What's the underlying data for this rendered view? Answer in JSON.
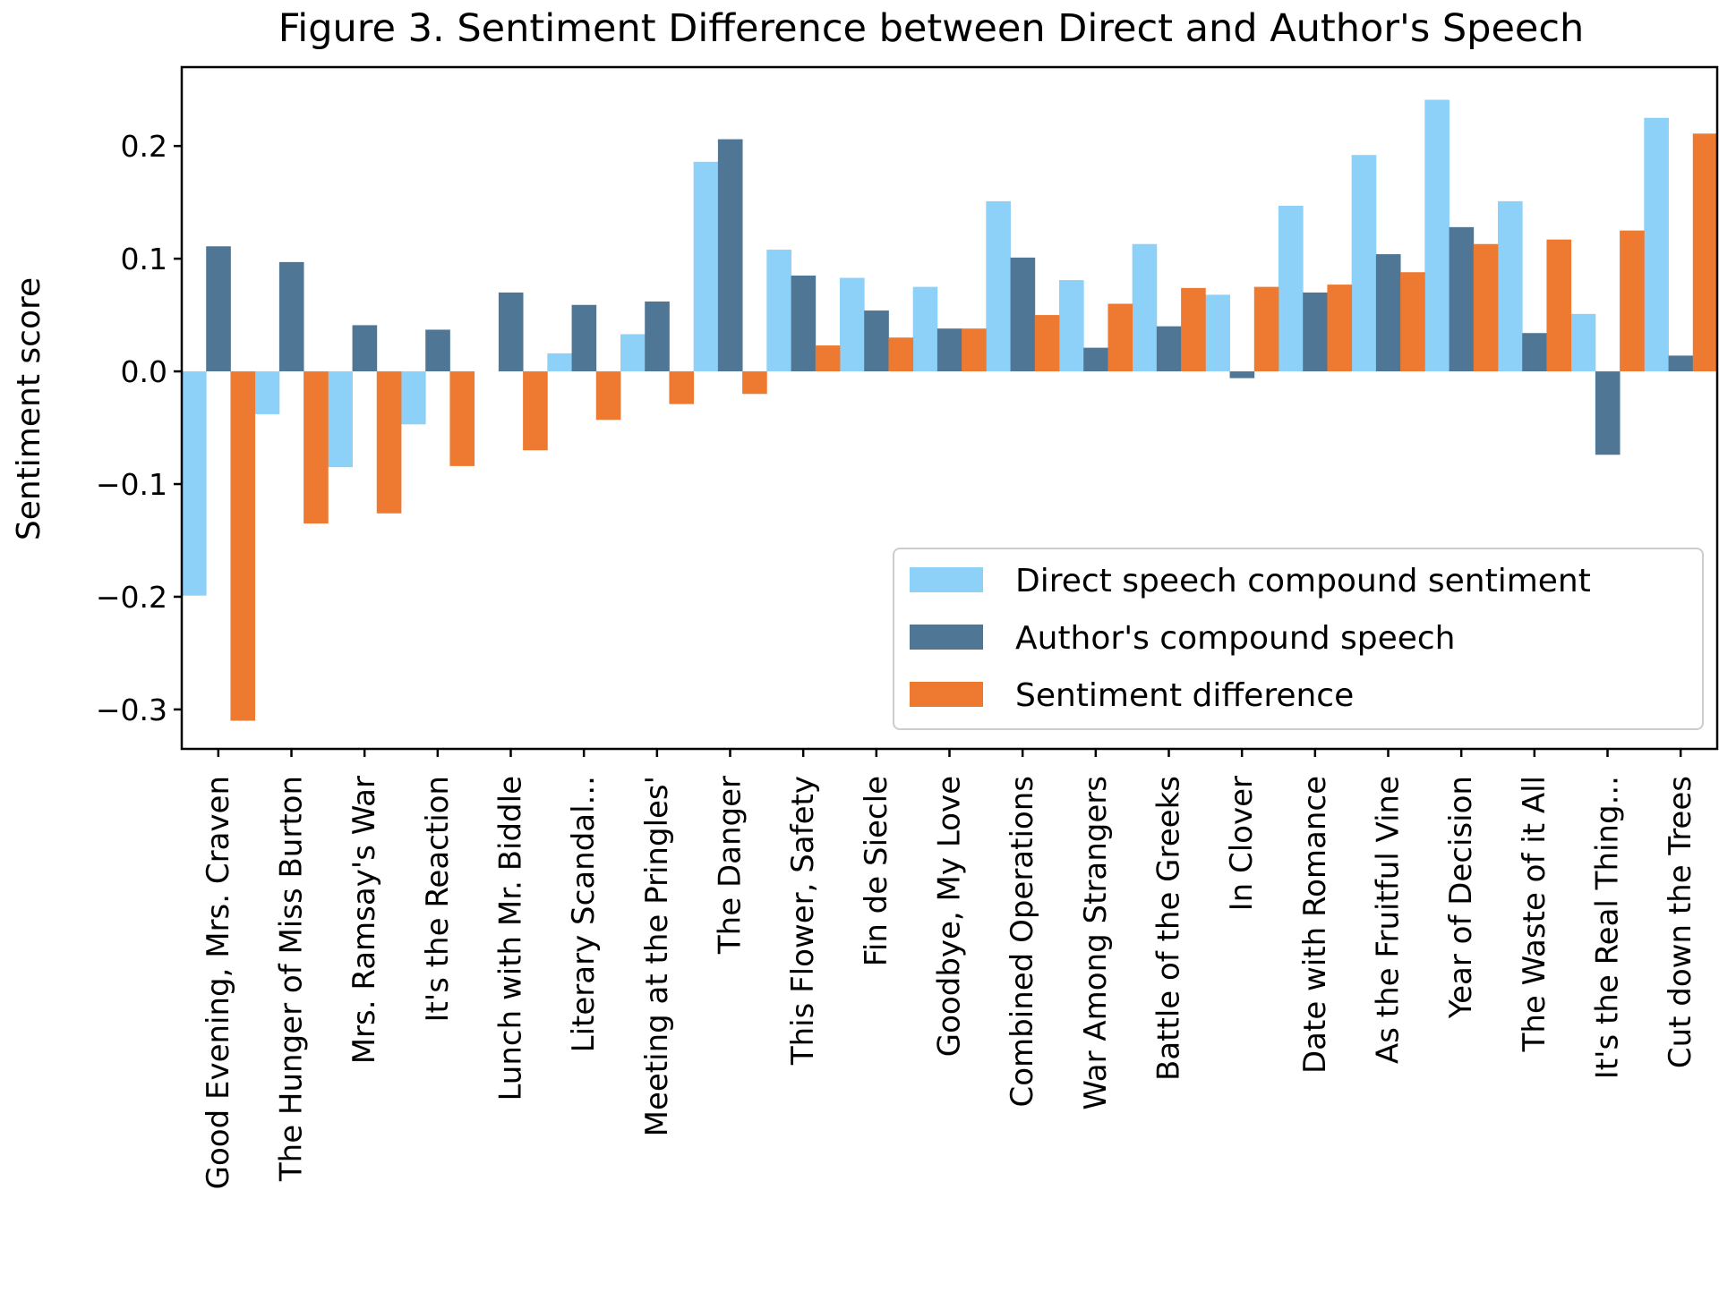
{
  "chart_data": {
    "type": "bar",
    "title": "Figure 3. Sentiment Difference between Direct and Author's Speech",
    "ylabel": "Sentiment score",
    "xlabel": "",
    "ylim": [
      -0.335,
      0.27
    ],
    "yticks": [
      -0.3,
      -0.2,
      -0.1,
      0.0,
      0.1,
      0.2
    ],
    "ytick_labels": [
      "−0.3",
      "−0.2",
      "−0.1",
      "0.0",
      "0.1",
      "0.2"
    ],
    "grid": false,
    "legend_position": "lower-right",
    "categories": [
      "Good Evening, Mrs. Craven",
      "The Hunger of Miss Burton",
      "Mrs. Ramsay's War",
      "It's the Reaction",
      "Lunch with Mr. Biddle",
      "Literary Scandal...",
      "Meeting at the Pringles'",
      "The Danger",
      "This Flower, Safety",
      "Fin de Siecle",
      "Goodbye, My Love",
      "Combined Operations",
      "War Among Strangers",
      "Battle of the Greeks",
      "In Clover",
      "Date with Romance",
      "As the Fruitful Vine",
      "Year of Decision",
      "The Waste of it All",
      "It's the Real Thing...",
      "Cut down the Trees"
    ],
    "series": [
      {
        "name": "Direct speech compound sentiment",
        "color": "#8dd0f8",
        "values": [
          -0.199,
          -0.038,
          -0.085,
          -0.047,
          0.0,
          0.016,
          0.033,
          0.186,
          0.108,
          0.083,
          0.075,
          0.151,
          0.081,
          0.113,
          0.068,
          0.147,
          0.192,
          0.241,
          0.151,
          0.051,
          0.225
        ]
      },
      {
        "name": "Author's compound speech",
        "color": "#4f7795",
        "values": [
          0.111,
          0.097,
          0.041,
          0.037,
          0.07,
          0.059,
          0.062,
          0.206,
          0.085,
          0.054,
          0.038,
          0.101,
          0.021,
          0.04,
          -0.006,
          0.07,
          0.104,
          0.128,
          0.034,
          -0.074,
          0.014
        ]
      },
      {
        "name": "Sentiment difference",
        "color": "#ee7930",
        "values": [
          -0.31,
          -0.135,
          -0.126,
          -0.084,
          -0.07,
          -0.043,
          -0.029,
          -0.02,
          0.023,
          0.03,
          0.038,
          0.05,
          0.06,
          0.074,
          0.075,
          0.077,
          0.088,
          0.113,
          0.117,
          0.125,
          0.211
        ]
      }
    ]
  }
}
